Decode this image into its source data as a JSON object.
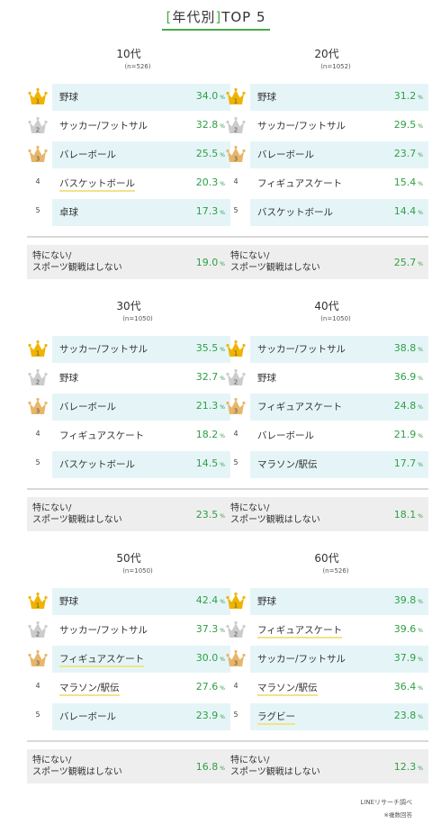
{
  "title": {
    "open_bracket": "[",
    "label": "年代別",
    "close_bracket": "]",
    "suffix": "TOP 5"
  },
  "colors": {
    "accent_green": "#4aa84a",
    "value_green": "#2e9f46",
    "shaded_row": "#e5f5f7",
    "gold": "#f0b400",
    "silver": "#cccccc",
    "bronze": "#e8b66a",
    "highlight_underline": "#f1e38a"
  },
  "percent_unit": "%",
  "chart_data": [
    {
      "type": "table",
      "title": "10代",
      "subtitle": "(n=526)",
      "rows": [
        {
          "rank": "1",
          "name": "野球",
          "value": 34.0,
          "display": "34.0"
        },
        {
          "rank": "2",
          "name": "サッカー/フットサル",
          "value": 32.8,
          "display": "32.8"
        },
        {
          "rank": "3",
          "name": "バレーボール",
          "value": 25.5,
          "display": "25.5"
        },
        {
          "rank": "4",
          "name": "バスケットボール",
          "value": 20.3,
          "display": "20.3",
          "underline": true
        },
        {
          "rank": "5",
          "name": "卓球",
          "value": 17.3,
          "display": "17.3"
        }
      ],
      "none": {
        "line1": "特にない/",
        "line2": "スポーツ観戦はしない",
        "value": 19.0,
        "display": "19.0"
      }
    },
    {
      "type": "table",
      "title": "20代",
      "subtitle": "(n=1052)",
      "rows": [
        {
          "rank": "1",
          "name": "野球",
          "value": 31.2,
          "display": "31.2"
        },
        {
          "rank": "2",
          "name": "サッカー/フットサル",
          "value": 29.5,
          "display": "29.5"
        },
        {
          "rank": "3",
          "name": "バレーボール",
          "value": 23.7,
          "display": "23.7"
        },
        {
          "rank": "4",
          "name": "フィギュアスケート",
          "value": 15.4,
          "display": "15.4"
        },
        {
          "rank": "5",
          "name": "バスケットボール",
          "value": 14.4,
          "display": "14.4"
        }
      ],
      "none": {
        "line1": "特にない/",
        "line2": "スポーツ観戦はしない",
        "value": 25.7,
        "display": "25.7"
      }
    },
    {
      "type": "table",
      "title": "30代",
      "subtitle": "(n=1050)",
      "rows": [
        {
          "rank": "1",
          "name": "サッカー/フットサル",
          "value": 35.5,
          "display": "35.5"
        },
        {
          "rank": "2",
          "name": "野球",
          "value": 32.7,
          "display": "32.7"
        },
        {
          "rank": "3",
          "name": "バレーボール",
          "value": 21.3,
          "display": "21.3"
        },
        {
          "rank": "4",
          "name": "フィギュアスケート",
          "value": 18.2,
          "display": "18.2"
        },
        {
          "rank": "5",
          "name": "バスケットボール",
          "value": 14.5,
          "display": "14.5"
        }
      ],
      "none": {
        "line1": "特にない/",
        "line2": "スポーツ観戦はしない",
        "value": 23.5,
        "display": "23.5"
      }
    },
    {
      "type": "table",
      "title": "40代",
      "subtitle": "(n=1050)",
      "rows": [
        {
          "rank": "1",
          "name": "サッカー/フットサル",
          "value": 38.8,
          "display": "38.8"
        },
        {
          "rank": "2",
          "name": "野球",
          "value": 36.9,
          "display": "36.9"
        },
        {
          "rank": "3",
          "name": "フィギュアスケート",
          "value": 24.8,
          "display": "24.8"
        },
        {
          "rank": "4",
          "name": "バレーボール",
          "value": 21.9,
          "display": "21.9"
        },
        {
          "rank": "5",
          "name": "マラソン/駅伝",
          "value": 17.7,
          "display": "17.7"
        }
      ],
      "none": {
        "line1": "特にない/",
        "line2": "スポーツ観戦はしない",
        "value": 18.1,
        "display": "18.1"
      }
    },
    {
      "type": "table",
      "title": "50代",
      "subtitle": "(n=1050)",
      "rows": [
        {
          "rank": "1",
          "name": "野球",
          "value": 42.4,
          "display": "42.4"
        },
        {
          "rank": "2",
          "name": "サッカー/フットサル",
          "value": 37.3,
          "display": "37.3"
        },
        {
          "rank": "3",
          "name": "フィギュアスケート",
          "value": 30.0,
          "display": "30.0",
          "underline": true
        },
        {
          "rank": "4",
          "name": "マラソン/駅伝",
          "value": 27.6,
          "display": "27.6",
          "underline": true
        },
        {
          "rank": "5",
          "name": "バレーボール",
          "value": 23.9,
          "display": "23.9"
        }
      ],
      "none": {
        "line1": "特にない/",
        "line2": "スポーツ観戦はしない",
        "value": 16.8,
        "display": "16.8"
      }
    },
    {
      "type": "table",
      "title": "60代",
      "subtitle": "(n=526)",
      "rows": [
        {
          "rank": "1",
          "name": "野球",
          "value": 39.8,
          "display": "39.8"
        },
        {
          "rank": "2",
          "name": "フィギュアスケート",
          "value": 39.6,
          "display": "39.6",
          "underline": true
        },
        {
          "rank": "3",
          "name": "サッカー/フットサル",
          "value": 37.9,
          "display": "37.9"
        },
        {
          "rank": "4",
          "name": "マラソン/駅伝",
          "value": 36.4,
          "display": "36.4",
          "underline": true
        },
        {
          "rank": "5",
          "name": "ラグビー",
          "value": 23.8,
          "display": "23.8",
          "underline": true
        }
      ],
      "none": {
        "line1": "特にない/",
        "line2": "スポーツ観戦はしない",
        "value": 12.3,
        "display": "12.3"
      }
    }
  ],
  "footer": {
    "source": "LINEリサーチ調べ",
    "note": "※複数回答"
  }
}
